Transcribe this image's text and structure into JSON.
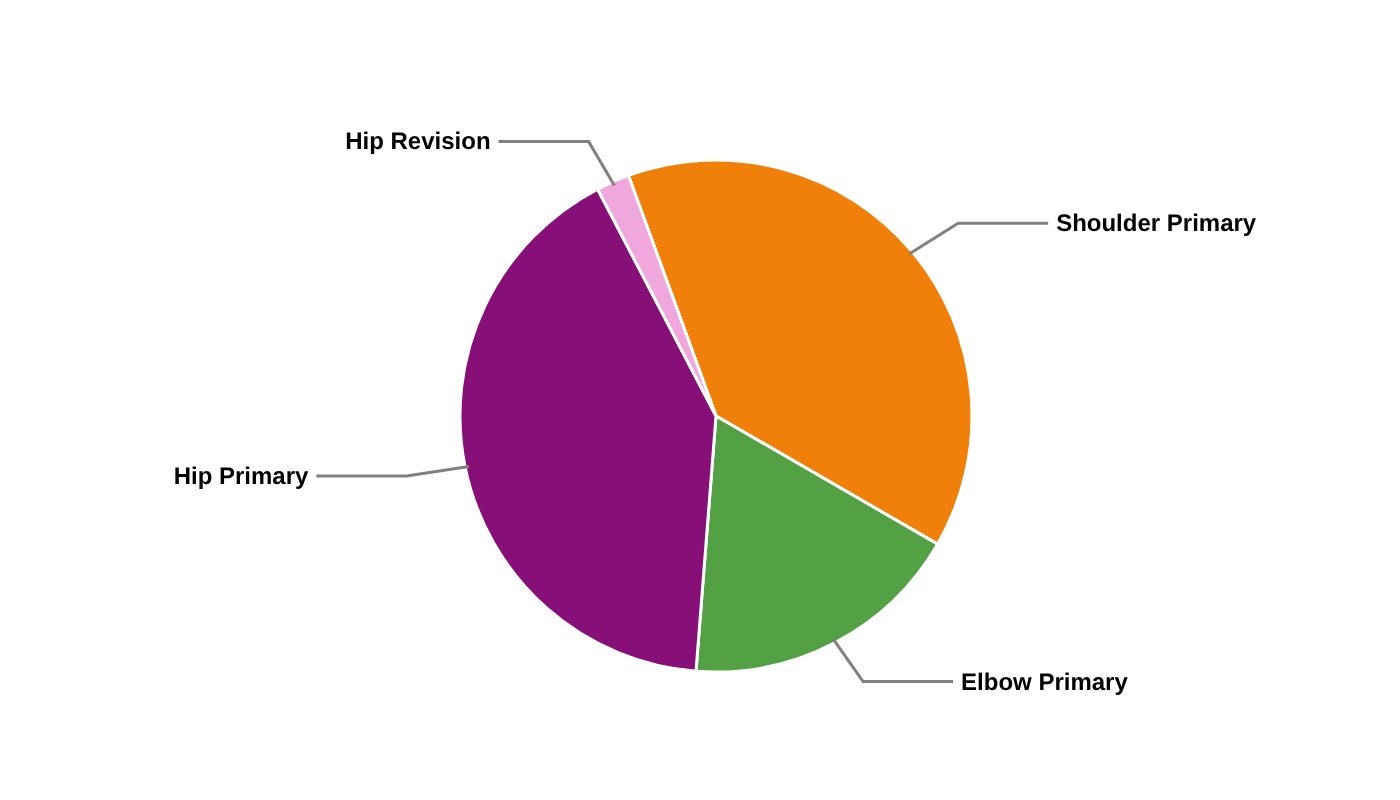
{
  "chart_data": {
    "type": "pie",
    "categories": [
      "Shoulder Primary",
      "Elbow Primary",
      "Hip Primary",
      "Hip Revision"
    ],
    "values": [
      38.9,
      17.9,
      41.1,
      2.1
    ],
    "colors": [
      "#f0800a",
      "#54a044",
      "#861078",
      "#f0a8dc"
    ]
  }
}
